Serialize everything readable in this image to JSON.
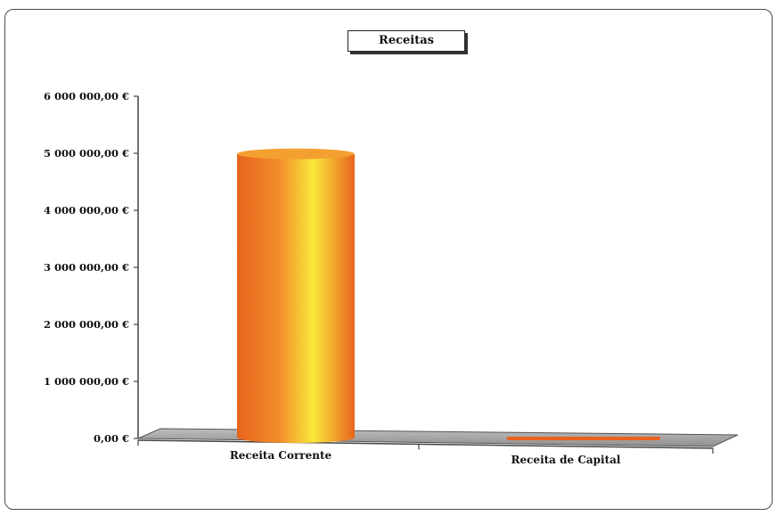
{
  "chart_data": {
    "type": "bar",
    "title": "Receitas",
    "categories": [
      "Receita Corrente",
      "Receita de Capital"
    ],
    "series": [
      {
        "values": [
          4990000,
          15000
        ]
      }
    ],
    "yticks": [
      "0,00 €",
      "1 000 000,00 €",
      "2 000 000,00 €",
      "3 000 000,00 €",
      "4 000 000,00 €",
      "5 000 000,00 €",
      "6 000 000,00 €"
    ],
    "ylim": [
      0,
      6000000
    ],
    "xlabel": "",
    "ylabel": "",
    "grid": false,
    "legend": "none",
    "colors": {
      "bar_edge": "#e8641e",
      "bar_mid": "#f28a2a",
      "bar_highlight": "#f9e83a",
      "floor": "#a9a9a9"
    }
  }
}
